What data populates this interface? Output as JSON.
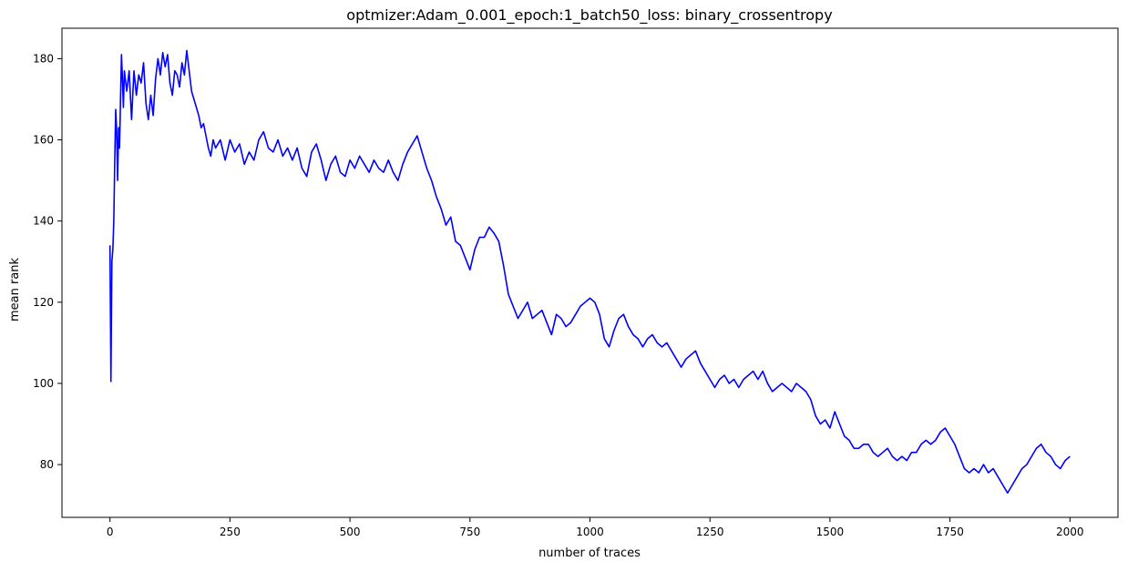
{
  "chart_data": {
    "type": "line",
    "title": "optmizer:Adam_0.001_epoch:1_batch50_loss: binary_crossentropy",
    "xlabel": "number of traces",
    "ylabel": "mean rank",
    "xlim": [
      -100,
      2100
    ],
    "ylim": [
      67,
      187.5
    ],
    "xticks": [
      0,
      250,
      500,
      750,
      1000,
      1250,
      1500,
      1750,
      2000
    ],
    "yticks": [
      80,
      100,
      120,
      140,
      160,
      180
    ],
    "grid": false,
    "legend": "none",
    "series": [
      {
        "color": "#0000ff",
        "points": [
          [
            0,
            134
          ],
          [
            2,
            100.5
          ],
          [
            4,
            130
          ],
          [
            6,
            133
          ],
          [
            8,
            140
          ],
          [
            10,
            155
          ],
          [
            12,
            167.5
          ],
          [
            14,
            162
          ],
          [
            16,
            150
          ],
          [
            18,
            163
          ],
          [
            20,
            158
          ],
          [
            22,
            170
          ],
          [
            24,
            181
          ],
          [
            26,
            175
          ],
          [
            28,
            168
          ],
          [
            30,
            177
          ],
          [
            35,
            172
          ],
          [
            40,
            177
          ],
          [
            45,
            165
          ],
          [
            50,
            177
          ],
          [
            55,
            171
          ],
          [
            60,
            176
          ],
          [
            65,
            174
          ],
          [
            70,
            179
          ],
          [
            75,
            169
          ],
          [
            80,
            165
          ],
          [
            85,
            171
          ],
          [
            90,
            166
          ],
          [
            95,
            175
          ],
          [
            100,
            180
          ],
          [
            105,
            176
          ],
          [
            110,
            181.5
          ],
          [
            115,
            178
          ],
          [
            120,
            181
          ],
          [
            125,
            174
          ],
          [
            130,
            171
          ],
          [
            135,
            177
          ],
          [
            140,
            176
          ],
          [
            145,
            173
          ],
          [
            150,
            179
          ],
          [
            155,
            176
          ],
          [
            160,
            182
          ],
          [
            165,
            177
          ],
          [
            170,
            172
          ],
          [
            175,
            170
          ],
          [
            180,
            168
          ],
          [
            185,
            166
          ],
          [
            190,
            163
          ],
          [
            195,
            164
          ],
          [
            200,
            161
          ],
          [
            205,
            158
          ],
          [
            210,
            156
          ],
          [
            215,
            160
          ],
          [
            220,
            158
          ],
          [
            230,
            160
          ],
          [
            240,
            155
          ],
          [
            250,
            160
          ],
          [
            260,
            157
          ],
          [
            270,
            159
          ],
          [
            280,
            154
          ],
          [
            290,
            157
          ],
          [
            300,
            155
          ],
          [
            310,
            160
          ],
          [
            320,
            162
          ],
          [
            330,
            158
          ],
          [
            340,
            157
          ],
          [
            350,
            160
          ],
          [
            360,
            156
          ],
          [
            370,
            158
          ],
          [
            380,
            155
          ],
          [
            390,
            158
          ],
          [
            400,
            153
          ],
          [
            410,
            151
          ],
          [
            420,
            157
          ],
          [
            430,
            159
          ],
          [
            440,
            155
          ],
          [
            450,
            150
          ],
          [
            460,
            154
          ],
          [
            470,
            156
          ],
          [
            480,
            152
          ],
          [
            490,
            151
          ],
          [
            500,
            155
          ],
          [
            510,
            153
          ],
          [
            520,
            156
          ],
          [
            530,
            154
          ],
          [
            540,
            152
          ],
          [
            550,
            155
          ],
          [
            560,
            153
          ],
          [
            570,
            152
          ],
          [
            580,
            155
          ],
          [
            590,
            152
          ],
          [
            600,
            150
          ],
          [
            610,
            154
          ],
          [
            620,
            157
          ],
          [
            630,
            159
          ],
          [
            640,
            161
          ],
          [
            650,
            157
          ],
          [
            660,
            153
          ],
          [
            670,
            150
          ],
          [
            680,
            146
          ],
          [
            690,
            143
          ],
          [
            700,
            139
          ],
          [
            710,
            141
          ],
          [
            720,
            135
          ],
          [
            730,
            134
          ],
          [
            740,
            131
          ],
          [
            750,
            128
          ],
          [
            760,
            133
          ],
          [
            770,
            136
          ],
          [
            780,
            136
          ],
          [
            790,
            138.5
          ],
          [
            800,
            137
          ],
          [
            810,
            135
          ],
          [
            820,
            129
          ],
          [
            830,
            122
          ],
          [
            840,
            119
          ],
          [
            850,
            116
          ],
          [
            860,
            118
          ],
          [
            870,
            120
          ],
          [
            880,
            116
          ],
          [
            890,
            117
          ],
          [
            900,
            118
          ],
          [
            910,
            115
          ],
          [
            920,
            112
          ],
          [
            930,
            117
          ],
          [
            940,
            116
          ],
          [
            950,
            114
          ],
          [
            960,
            115
          ],
          [
            970,
            117
          ],
          [
            980,
            119
          ],
          [
            990,
            120
          ],
          [
            1000,
            121
          ],
          [
            1010,
            120
          ],
          [
            1020,
            117
          ],
          [
            1030,
            111
          ],
          [
            1040,
            109
          ],
          [
            1050,
            113
          ],
          [
            1060,
            116
          ],
          [
            1070,
            117
          ],
          [
            1080,
            114
          ],
          [
            1090,
            112
          ],
          [
            1100,
            111
          ],
          [
            1110,
            109
          ],
          [
            1120,
            111
          ],
          [
            1130,
            112
          ],
          [
            1140,
            110
          ],
          [
            1150,
            109
          ],
          [
            1160,
            110
          ],
          [
            1170,
            108
          ],
          [
            1180,
            106
          ],
          [
            1190,
            104
          ],
          [
            1200,
            106
          ],
          [
            1210,
            107
          ],
          [
            1220,
            108
          ],
          [
            1230,
            105
          ],
          [
            1240,
            103
          ],
          [
            1250,
            101
          ],
          [
            1260,
            99
          ],
          [
            1270,
            101
          ],
          [
            1280,
            102
          ],
          [
            1290,
            100
          ],
          [
            1300,
            101
          ],
          [
            1310,
            99
          ],
          [
            1320,
            101
          ],
          [
            1330,
            102
          ],
          [
            1340,
            103
          ],
          [
            1350,
            101
          ],
          [
            1360,
            103
          ],
          [
            1370,
            100
          ],
          [
            1380,
            98
          ],
          [
            1390,
            99
          ],
          [
            1400,
            100
          ],
          [
            1410,
            99
          ],
          [
            1420,
            98
          ],
          [
            1430,
            100
          ],
          [
            1440,
            99
          ],
          [
            1450,
            98
          ],
          [
            1460,
            96
          ],
          [
            1470,
            92
          ],
          [
            1480,
            90
          ],
          [
            1490,
            91
          ],
          [
            1500,
            89
          ],
          [
            1510,
            93
          ],
          [
            1520,
            90
          ],
          [
            1530,
            87
          ],
          [
            1540,
            86
          ],
          [
            1550,
            84
          ],
          [
            1560,
            84
          ],
          [
            1570,
            85
          ],
          [
            1580,
            85
          ],
          [
            1590,
            83
          ],
          [
            1600,
            82
          ],
          [
            1610,
            83
          ],
          [
            1620,
            84
          ],
          [
            1630,
            82
          ],
          [
            1640,
            81
          ],
          [
            1650,
            82
          ],
          [
            1660,
            81
          ],
          [
            1670,
            83
          ],
          [
            1680,
            83
          ],
          [
            1690,
            85
          ],
          [
            1700,
            86
          ],
          [
            1710,
            85
          ],
          [
            1720,
            86
          ],
          [
            1730,
            88
          ],
          [
            1740,
            89
          ],
          [
            1750,
            87
          ],
          [
            1760,
            85
          ],
          [
            1770,
            82
          ],
          [
            1780,
            79
          ],
          [
            1790,
            78
          ],
          [
            1800,
            79
          ],
          [
            1810,
            78
          ],
          [
            1820,
            80
          ],
          [
            1830,
            78
          ],
          [
            1840,
            79
          ],
          [
            1850,
            77
          ],
          [
            1860,
            75
          ],
          [
            1870,
            73
          ],
          [
            1880,
            75
          ],
          [
            1890,
            77
          ],
          [
            1900,
            79
          ],
          [
            1910,
            80
          ],
          [
            1920,
            82
          ],
          [
            1930,
            84
          ],
          [
            1940,
            85
          ],
          [
            1950,
            83
          ],
          [
            1960,
            82
          ],
          [
            1970,
            80
          ],
          [
            1980,
            79
          ],
          [
            1990,
            81
          ],
          [
            2000,
            82
          ]
        ]
      }
    ]
  }
}
